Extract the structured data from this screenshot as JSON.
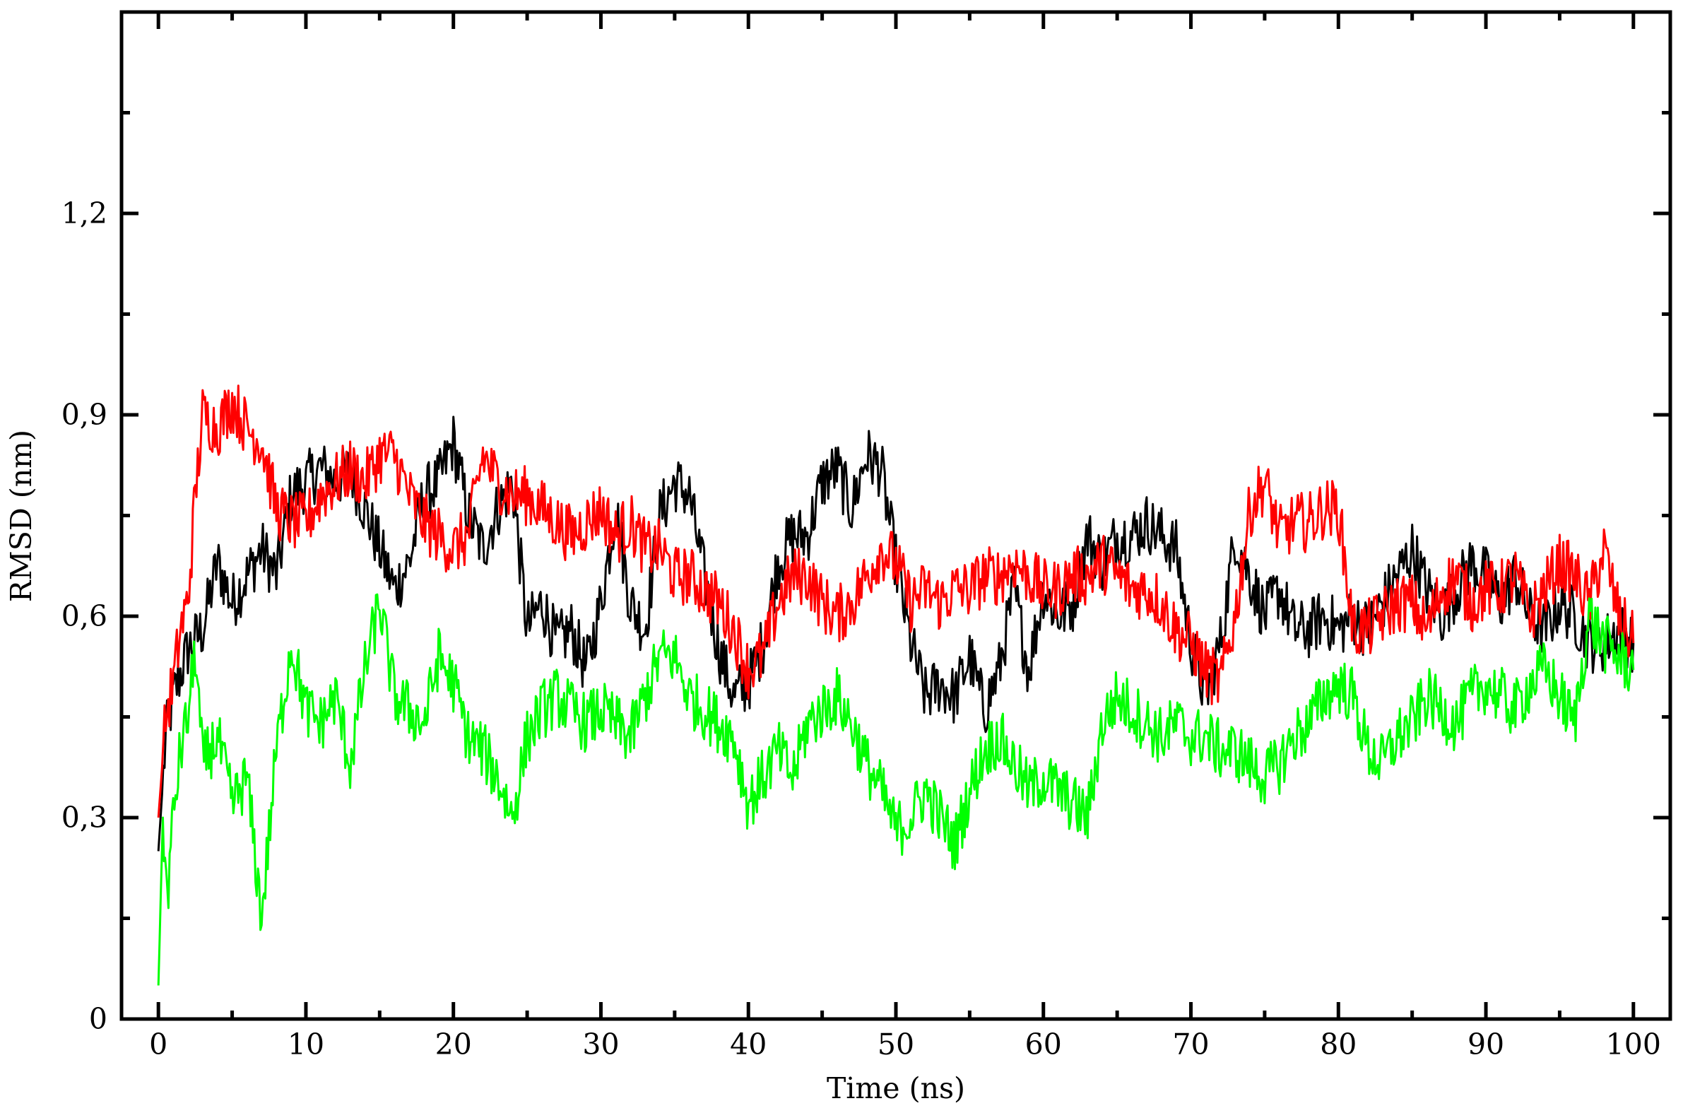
{
  "chart_data": {
    "type": "line",
    "title": "",
    "xlabel": "Time (ns)",
    "ylabel": "RMSD (nm)",
    "xlim": [
      -2.5,
      102.5
    ],
    "ylim": [
      0,
      1.5
    ],
    "x_ticks": [
      0,
      10,
      20,
      30,
      40,
      50,
      60,
      70,
      80,
      90,
      100
    ],
    "x_tick_labels": [
      "0",
      "10",
      "20",
      "30",
      "40",
      "50",
      "60",
      "70",
      "80",
      "90",
      "100"
    ],
    "y_ticks": [
      0,
      0.3,
      0.6,
      0.9,
      1.2
    ],
    "y_tick_labels": [
      "0",
      "0,3",
      "0,6",
      "0,9",
      "1,2"
    ],
    "y_minor_ticks": [
      0.15,
      0.45,
      0.75,
      1.05,
      1.35
    ],
    "x_minor_ticks": [
      5,
      15,
      25,
      35,
      45,
      55,
      65,
      75,
      85,
      95
    ],
    "grid": false,
    "legend": "none",
    "series": [
      {
        "color": "#000000",
        "x": [
          0,
          0.5,
          1,
          2,
          3,
          4,
          5,
          6,
          7,
          8,
          9,
          10,
          11,
          12,
          13,
          14,
          15,
          16,
          17,
          18,
          19,
          20,
          21,
          22,
          23,
          24,
          25,
          26,
          27,
          28,
          29,
          30,
          31,
          32,
          33,
          34,
          35,
          36,
          37,
          38,
          39,
          40,
          41,
          42,
          43,
          44,
          45,
          46,
          47,
          48,
          49,
          50,
          51,
          52,
          53,
          54,
          55,
          56,
          57,
          58,
          59,
          60,
          61,
          62,
          63,
          64,
          65,
          66,
          67,
          68,
          69,
          70,
          71,
          72,
          73,
          74,
          75,
          76,
          77,
          78,
          79,
          80,
          81,
          82,
          83,
          84,
          85,
          86,
          87,
          88,
          89,
          90,
          91,
          92,
          93,
          94,
          95,
          96,
          97,
          98,
          99,
          100
        ],
        "y": [
          0.25,
          0.42,
          0.48,
          0.55,
          0.58,
          0.68,
          0.62,
          0.66,
          0.7,
          0.66,
          0.78,
          0.8,
          0.82,
          0.8,
          0.82,
          0.76,
          0.7,
          0.64,
          0.68,
          0.78,
          0.8,
          0.86,
          0.75,
          0.7,
          0.76,
          0.8,
          0.58,
          0.62,
          0.56,
          0.58,
          0.52,
          0.62,
          0.76,
          0.62,
          0.58,
          0.75,
          0.8,
          0.78,
          0.66,
          0.55,
          0.48,
          0.5,
          0.56,
          0.68,
          0.72,
          0.72,
          0.8,
          0.82,
          0.76,
          0.84,
          0.82,
          0.68,
          0.56,
          0.48,
          0.5,
          0.48,
          0.54,
          0.46,
          0.52,
          0.64,
          0.52,
          0.64,
          0.6,
          0.62,
          0.72,
          0.68,
          0.72,
          0.72,
          0.74,
          0.72,
          0.7,
          0.56,
          0.48,
          0.56,
          0.72,
          0.66,
          0.6,
          0.64,
          0.58,
          0.58,
          0.6,
          0.58,
          0.6,
          0.58,
          0.62,
          0.66,
          0.7,
          0.64,
          0.6,
          0.64,
          0.68,
          0.66,
          0.62,
          0.66,
          0.6,
          0.58,
          0.62,
          0.6,
          0.56,
          0.56,
          0.58,
          0.56
        ]
      },
      {
        "color": "#ff0000",
        "x": [
          0,
          0.5,
          1,
          1.5,
          2,
          2.5,
          3,
          4,
          5,
          6,
          7,
          8,
          9,
          10,
          11,
          12,
          13,
          14,
          15,
          16,
          17,
          18,
          19,
          20,
          21,
          22,
          23,
          24,
          25,
          26,
          27,
          28,
          29,
          30,
          31,
          32,
          33,
          34,
          35,
          36,
          37,
          38,
          39,
          40,
          41,
          42,
          43,
          44,
          45,
          46,
          47,
          48,
          49,
          50,
          51,
          52,
          53,
          54,
          55,
          56,
          57,
          58,
          59,
          60,
          61,
          62,
          63,
          64,
          65,
          66,
          67,
          68,
          69,
          70,
          71,
          72,
          73,
          74,
          75,
          76,
          77,
          78,
          79,
          80,
          81,
          82,
          83,
          84,
          85,
          86,
          87,
          88,
          89,
          90,
          91,
          92,
          93,
          94,
          95,
          96,
          97,
          98,
          99,
          100
        ],
        "y": [
          0.3,
          0.45,
          0.5,
          0.58,
          0.62,
          0.78,
          0.9,
          0.88,
          0.92,
          0.88,
          0.86,
          0.76,
          0.74,
          0.74,
          0.78,
          0.8,
          0.82,
          0.8,
          0.84,
          0.84,
          0.78,
          0.74,
          0.72,
          0.7,
          0.72,
          0.84,
          0.8,
          0.78,
          0.78,
          0.76,
          0.74,
          0.72,
          0.74,
          0.76,
          0.72,
          0.74,
          0.7,
          0.7,
          0.66,
          0.66,
          0.64,
          0.62,
          0.58,
          0.52,
          0.54,
          0.62,
          0.66,
          0.66,
          0.62,
          0.6,
          0.62,
          0.66,
          0.7,
          0.68,
          0.62,
          0.64,
          0.62,
          0.64,
          0.64,
          0.66,
          0.66,
          0.68,
          0.66,
          0.64,
          0.64,
          0.66,
          0.66,
          0.68,
          0.66,
          0.64,
          0.64,
          0.62,
          0.58,
          0.56,
          0.52,
          0.5,
          0.6,
          0.76,
          0.8,
          0.72,
          0.74,
          0.74,
          0.76,
          0.76,
          0.58,
          0.58,
          0.6,
          0.62,
          0.62,
          0.58,
          0.64,
          0.66,
          0.62,
          0.64,
          0.64,
          0.66,
          0.6,
          0.64,
          0.68,
          0.66,
          0.62,
          0.7,
          0.6,
          0.56
        ]
      },
      {
        "color": "#00ff00",
        "x": [
          0,
          0.3,
          0.6,
          1,
          1.5,
          2,
          2.5,
          3,
          4,
          5,
          6,
          7,
          8,
          9,
          10,
          11,
          12,
          13,
          14,
          15,
          16,
          17,
          18,
          19,
          20,
          21,
          22,
          23,
          24,
          25,
          26,
          27,
          28,
          29,
          30,
          31,
          32,
          33,
          34,
          35,
          36,
          37,
          38,
          39,
          40,
          41,
          42,
          43,
          44,
          45,
          46,
          47,
          48,
          49,
          50,
          51,
          52,
          53,
          54,
          55,
          56,
          57,
          58,
          59,
          60,
          61,
          62,
          63,
          64,
          65,
          66,
          67,
          68,
          69,
          70,
          71,
          72,
          73,
          74,
          75,
          76,
          77,
          78,
          79,
          80,
          81,
          82,
          83,
          84,
          85,
          86,
          87,
          88,
          89,
          90,
          91,
          92,
          93,
          94,
          95,
          96,
          97,
          98,
          99,
          100
        ],
        "y": [
          0.05,
          0.3,
          0.18,
          0.3,
          0.4,
          0.45,
          0.55,
          0.38,
          0.42,
          0.32,
          0.36,
          0.15,
          0.4,
          0.56,
          0.46,
          0.44,
          0.48,
          0.38,
          0.52,
          0.62,
          0.48,
          0.46,
          0.44,
          0.54,
          0.5,
          0.42,
          0.4,
          0.36,
          0.3,
          0.42,
          0.46,
          0.48,
          0.46,
          0.44,
          0.46,
          0.44,
          0.42,
          0.48,
          0.54,
          0.54,
          0.48,
          0.46,
          0.44,
          0.42,
          0.32,
          0.36,
          0.4,
          0.36,
          0.44,
          0.46,
          0.48,
          0.44,
          0.38,
          0.34,
          0.28,
          0.3,
          0.34,
          0.3,
          0.26,
          0.34,
          0.4,
          0.42,
          0.38,
          0.34,
          0.36,
          0.34,
          0.32,
          0.3,
          0.44,
          0.48,
          0.46,
          0.44,
          0.42,
          0.44,
          0.42,
          0.42,
          0.4,
          0.4,
          0.38,
          0.36,
          0.38,
          0.42,
          0.44,
          0.48,
          0.5,
          0.48,
          0.4,
          0.38,
          0.42,
          0.44,
          0.48,
          0.46,
          0.44,
          0.48,
          0.5,
          0.48,
          0.46,
          0.5,
          0.52,
          0.48,
          0.44,
          0.6,
          0.56,
          0.54,
          0.52
        ]
      }
    ]
  }
}
